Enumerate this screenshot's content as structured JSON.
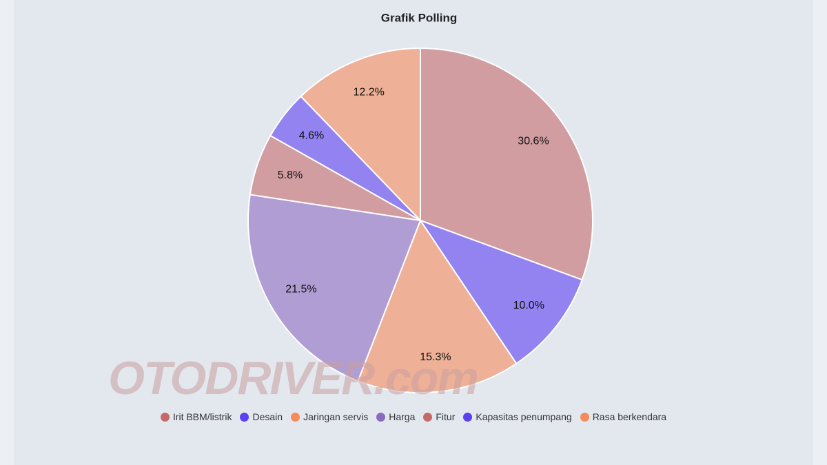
{
  "chart_data": {
    "type": "pie",
    "title": "Grafik Polling",
    "categories": [
      "Irit BBM/listrik",
      "Desain",
      "Jaringan servis",
      "Harga",
      "Fitur",
      "Kapasitas penumpang",
      "Rasa berkendara"
    ],
    "values": [
      30.6,
      10.0,
      15.3,
      21.5,
      5.8,
      4.6,
      12.2
    ],
    "value_labels": [
      "30.6%",
      "10.0%",
      "15.3%",
      "21.5%",
      "5.8%",
      "4.6%",
      "12.2%"
    ],
    "colors": [
      "#c46a6a",
      "#5b3ff0",
      "#f58a5a",
      "#8c6bbf",
      "#c46a6a",
      "#5b3ff0",
      "#f58a5a"
    ],
    "legend": "bottom",
    "watermark": "OTODRIVER.com"
  }
}
